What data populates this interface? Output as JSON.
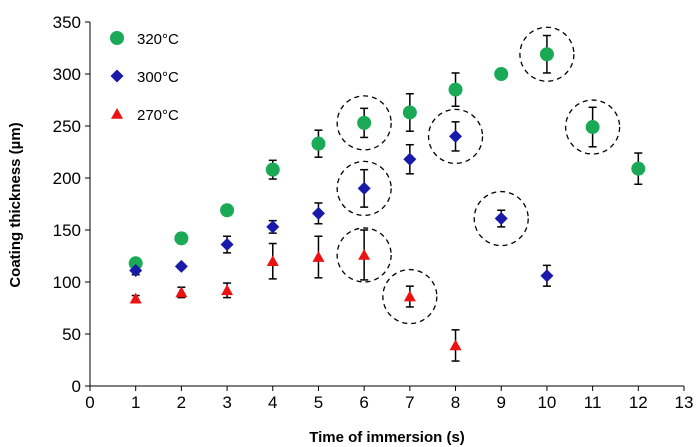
{
  "chart_data": {
    "type": "scatter",
    "xlabel": "Time of immersion (s)",
    "ylabel": "Coating thickness (µm)",
    "xlim": [
      0,
      13
    ],
    "ylim": [
      0,
      350
    ],
    "xticks": [
      "0",
      "1",
      "2",
      "3",
      "4",
      "5",
      "6",
      "7",
      "8",
      "9",
      "10",
      "11",
      "12",
      "13"
    ],
    "yticks": [
      "0",
      "50",
      "100",
      "150",
      "200",
      "250",
      "300",
      "350"
    ],
    "grid": false,
    "legend_position": "top-left",
    "series": [
      {
        "name": "320°C",
        "marker": "circle",
        "color": "#1aaa55",
        "points": [
          {
            "x": 1,
            "y": 118,
            "err": 4
          },
          {
            "x": 2,
            "y": 142,
            "err": 5
          },
          {
            "x": 3,
            "y": 169,
            "err": 3
          },
          {
            "x": 4,
            "y": 208,
            "err": 9
          },
          {
            "x": 5,
            "y": 233,
            "err": 13
          },
          {
            "x": 6,
            "y": 253,
            "err": 14
          },
          {
            "x": 7,
            "y": 263,
            "err": 18
          },
          {
            "x": 8,
            "y": 285,
            "err": 16
          },
          {
            "x": 9,
            "y": 300,
            "err": 3
          },
          {
            "x": 10,
            "y": 319,
            "err": 18
          },
          {
            "x": 11,
            "y": 249,
            "err": 19
          },
          {
            "x": 12,
            "y": 209,
            "err": 15
          }
        ]
      },
      {
        "name": "300°C",
        "marker": "diamond",
        "color": "#1a1aaa",
        "points": [
          {
            "x": 1,
            "y": 111,
            "err": 4
          },
          {
            "x": 2,
            "y": 115,
            "err": 2
          },
          {
            "x": 3,
            "y": 136,
            "err": 8
          },
          {
            "x": 4,
            "y": 153,
            "err": 6
          },
          {
            "x": 5,
            "y": 166,
            "err": 10
          },
          {
            "x": 6,
            "y": 190,
            "err": 18
          },
          {
            "x": 7,
            "y": 218,
            "err": 14
          },
          {
            "x": 8,
            "y": 240,
            "err": 14
          },
          {
            "x": 9,
            "y": 161,
            "err": 8
          },
          {
            "x": 10,
            "y": 106,
            "err": 10
          }
        ]
      },
      {
        "name": "270°C",
        "marker": "triangle",
        "color": "#ee1111",
        "points": [
          {
            "x": 1,
            "y": 84,
            "err": 3
          },
          {
            "x": 2,
            "y": 90,
            "err": 5
          },
          {
            "x": 3,
            "y": 92,
            "err": 7
          },
          {
            "x": 4,
            "y": 120,
            "err": 17
          },
          {
            "x": 5,
            "y": 124,
            "err": 20
          },
          {
            "x": 6,
            "y": 126,
            "err": 24
          },
          {
            "x": 7,
            "y": 86,
            "err": 10
          },
          {
            "x": 8,
            "y": 39,
            "err": 15
          }
        ]
      }
    ],
    "highlighted_points": [
      {
        "x": 6,
        "y": 253
      },
      {
        "x": 6,
        "y": 190
      },
      {
        "x": 6,
        "y": 126
      },
      {
        "x": 7,
        "y": 86
      },
      {
        "x": 8,
        "y": 240
      },
      {
        "x": 9,
        "y": 161
      },
      {
        "x": 10,
        "y": 319
      },
      {
        "x": 11,
        "y": 249
      }
    ]
  }
}
